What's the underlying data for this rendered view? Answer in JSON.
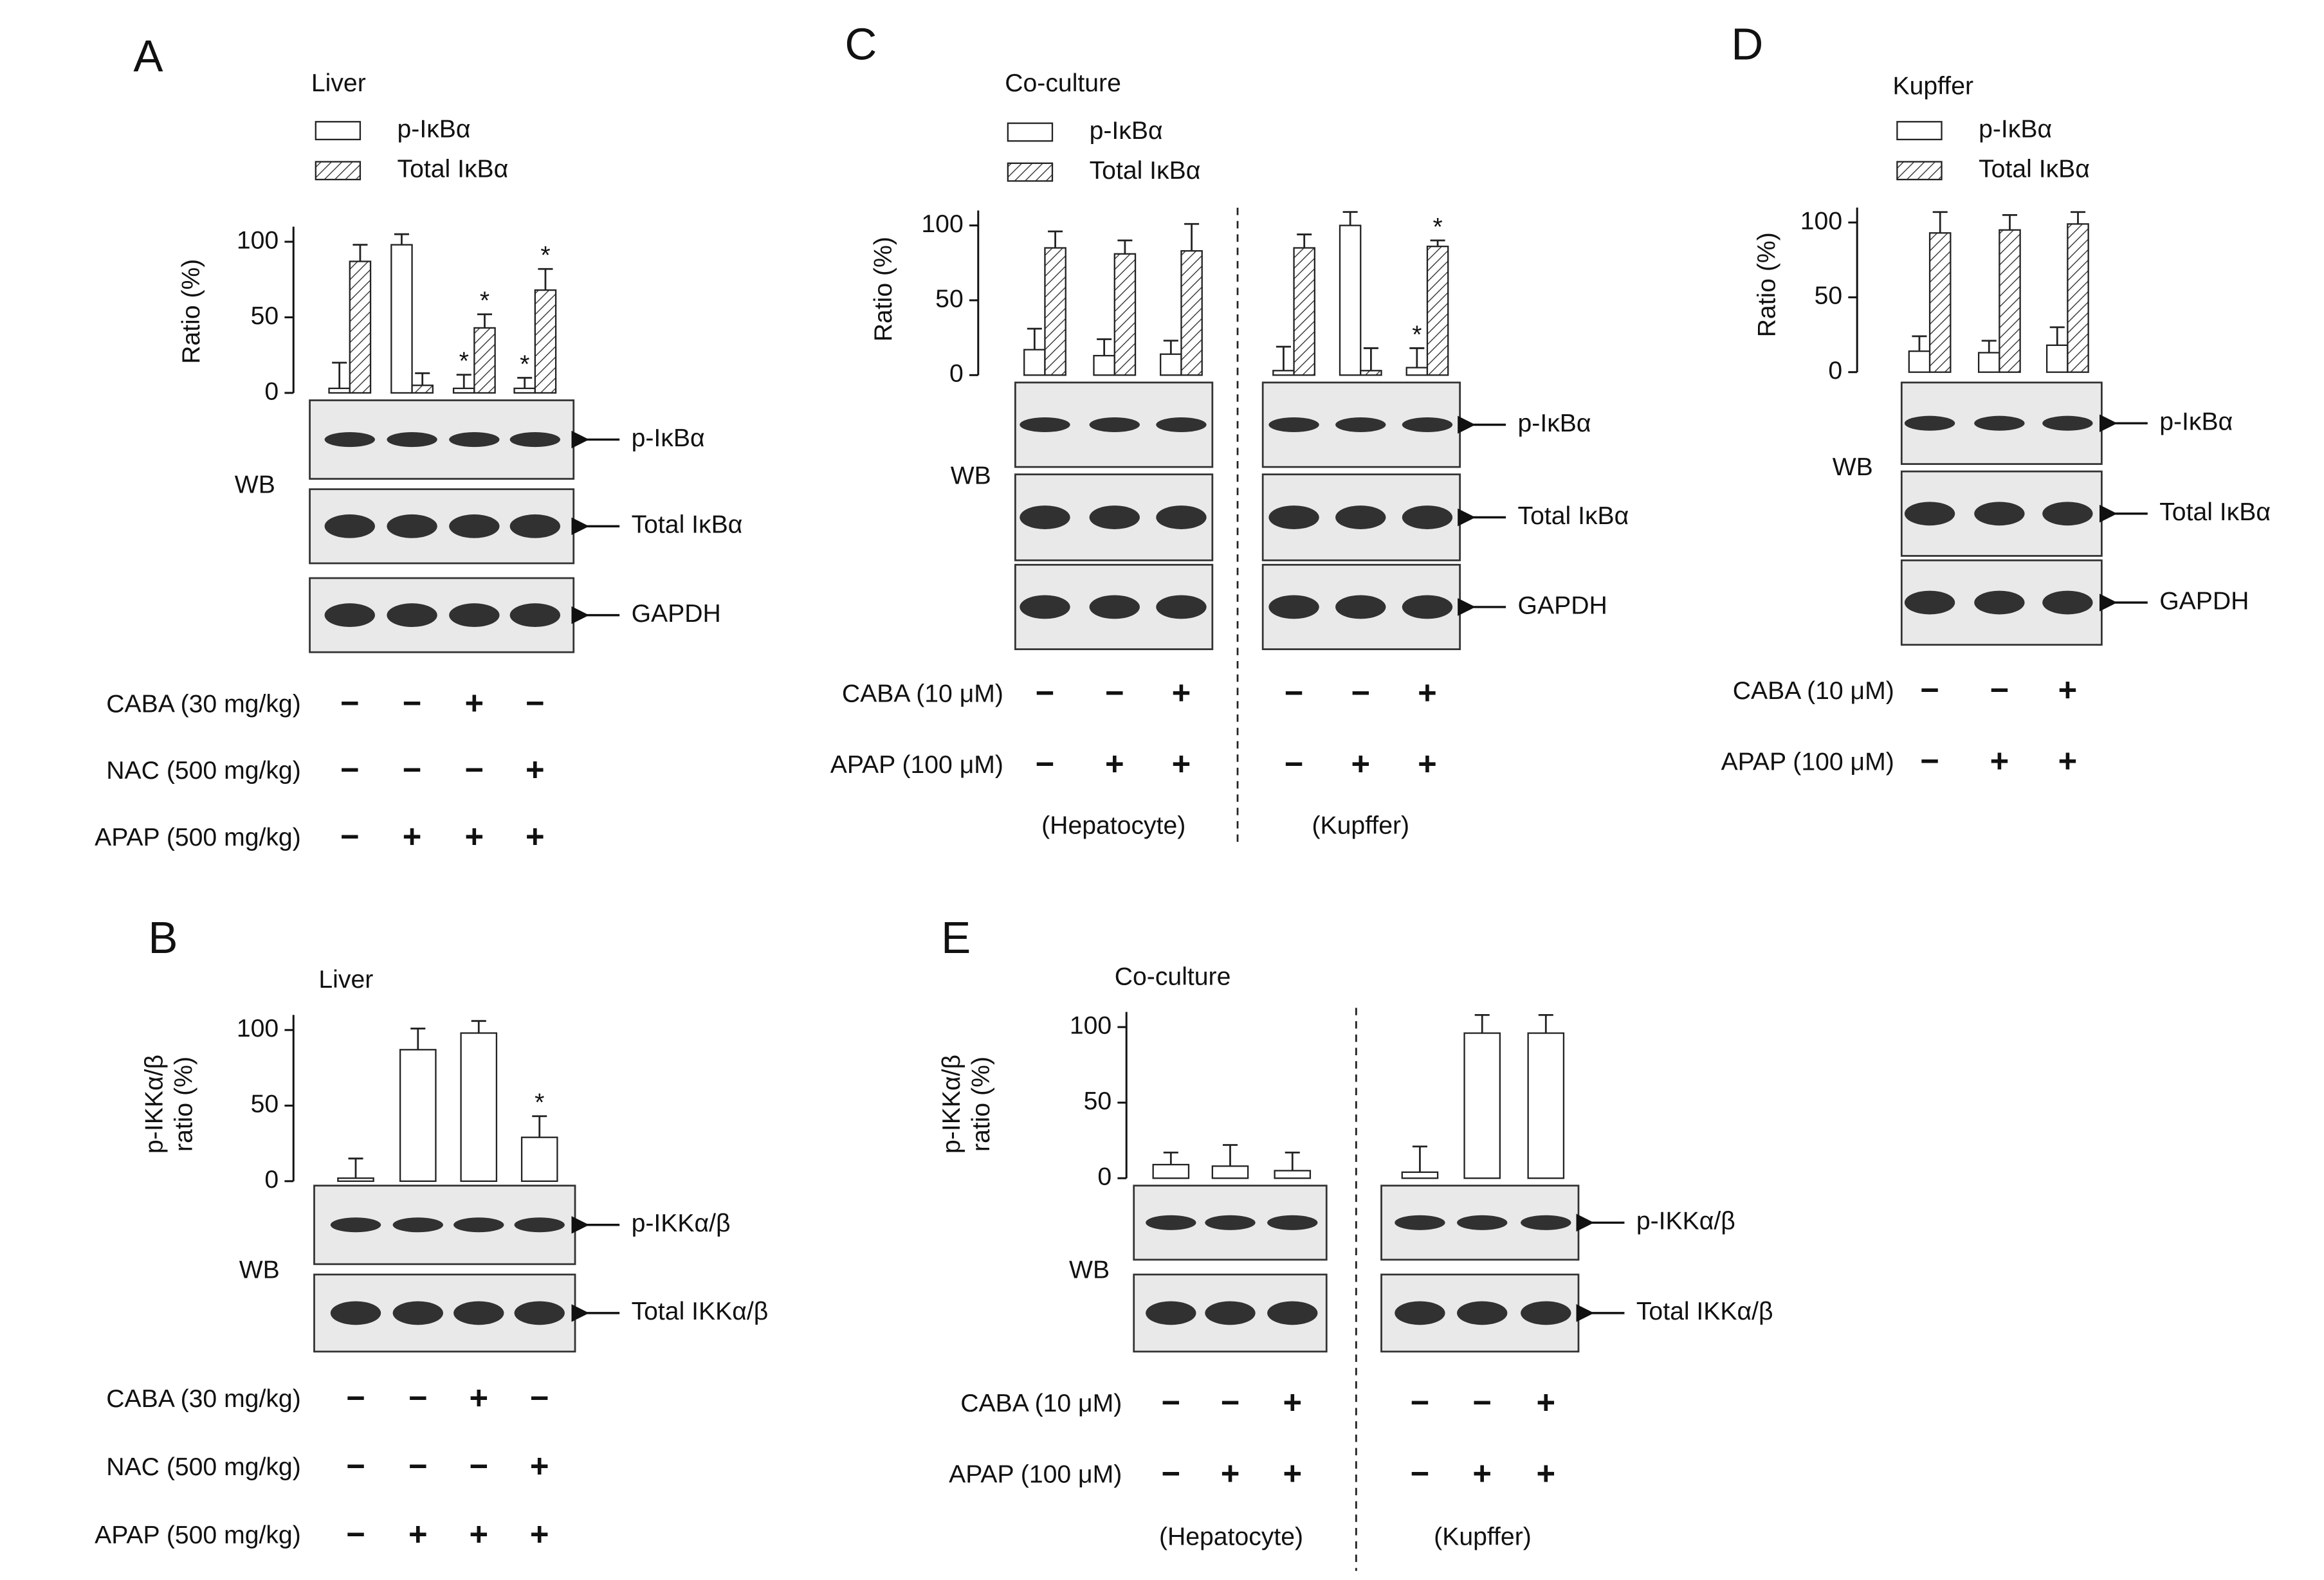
{
  "chart_data": [
    {
      "type": "bar",
      "panel": "A",
      "title": "Liver",
      "ylabel": "Ratio (%)",
      "ylim": [
        0,
        110
      ],
      "yticks": [
        0,
        50,
        100
      ],
      "categories": [
        null,
        null,
        null,
        null
      ],
      "series": [
        {
          "name": "p-IκBα",
          "color": "#ffffff",
          "values": [
            3,
            98,
            3,
            3
          ],
          "errors": [
            17,
            7,
            9,
            7
          ],
          "significance": [
            null,
            null,
            "*",
            "*"
          ]
        },
        {
          "name": "Total IκBα",
          "color": "#ffffff",
          "hatch": true,
          "values": [
            87,
            5,
            43,
            68
          ],
          "errors": [
            11,
            8,
            9,
            14
          ],
          "significance": [
            null,
            null,
            "*",
            "*"
          ]
        }
      ],
      "blot": {
        "label": "WB",
        "rows": [
          "p-IκBα",
          "Total IκBα",
          "GAPDH"
        ]
      },
      "treatments": [
        {
          "label": "CABA (30 mg/kg)",
          "signs": [
            "−",
            "−",
            "+",
            "−"
          ]
        },
        {
          "label": "NAC (500 mg/kg)",
          "signs": [
            "−",
            "−",
            "−",
            "+"
          ]
        },
        {
          "label": "APAP (500 mg/kg)",
          "signs": [
            "−",
            "+",
            "+",
            "+"
          ]
        }
      ]
    },
    {
      "type": "bar",
      "panel": "B",
      "title": "Liver",
      "ylabel": [
        "p-IKKα/β",
        "ratio (%)"
      ],
      "ylim": [
        0,
        110
      ],
      "yticks": [
        0,
        50,
        100
      ],
      "categories": [
        null,
        null,
        null,
        null
      ],
      "series": [
        {
          "color": "#ffffff",
          "values": [
            2,
            87,
            98,
            29
          ],
          "errors": [
            13,
            14,
            8,
            14
          ],
          "significance": [
            null,
            null,
            null,
            "*"
          ]
        }
      ],
      "blot": {
        "label": "WB",
        "rows": [
          "p-IKKα/β",
          "Total IKKα/β"
        ]
      },
      "treatments": [
        {
          "label": "CABA (30 mg/kg)",
          "signs": [
            "−",
            "−",
            "+",
            "−"
          ]
        },
        {
          "label": "NAC (500 mg/kg)",
          "signs": [
            "−",
            "−",
            "−",
            "+"
          ]
        },
        {
          "label": "APAP (500 mg/kg)",
          "signs": [
            "−",
            "+",
            "+",
            "+"
          ]
        }
      ]
    },
    {
      "type": "bar",
      "panel": "C",
      "title": "Co-culture",
      "ylabel": "Ratio (%)",
      "ylim": [
        0,
        110
      ],
      "yticks": [
        0,
        50,
        100
      ],
      "categories": [
        null,
        null,
        null,
        null,
        null,
        null
      ],
      "groups": [
        "(Hepatocyte)",
        "(Kupffer)"
      ],
      "series": [
        {
          "name": "p-IκBα",
          "color": "#ffffff",
          "values": [
            17,
            13,
            14,
            3,
            100,
            5
          ],
          "errors": [
            14,
            11,
            9,
            16,
            9,
            13
          ],
          "significance": [
            null,
            null,
            null,
            null,
            null,
            "*"
          ]
        },
        {
          "name": "Total IκBα",
          "color": "#ffffff",
          "hatch": true,
          "values": [
            85,
            81,
            83,
            85,
            3,
            86
          ],
          "errors": [
            11,
            9,
            18,
            9,
            15,
            4
          ],
          "significance": [
            null,
            null,
            null,
            null,
            null,
            "*"
          ]
        }
      ],
      "blot": {
        "label": "WB",
        "rows": [
          "p-IκBα",
          "Total IκBα",
          "GAPDH"
        ]
      },
      "treatments": [
        {
          "label": "CABA (10 μM)",
          "signs": [
            "−",
            "−",
            "+",
            "−",
            "−",
            "+"
          ]
        },
        {
          "label": "APAP (100 μM)",
          "signs": [
            "−",
            "+",
            "+",
            "−",
            "+",
            "+"
          ]
        }
      ]
    },
    {
      "type": "bar",
      "panel": "D",
      "title": "Kupffer",
      "ylabel": "Ratio (%)",
      "ylim": [
        0,
        110
      ],
      "yticks": [
        0,
        50,
        100
      ],
      "categories": [
        null,
        null,
        null
      ],
      "series": [
        {
          "name": "p-IκBα",
          "color": "#ffffff",
          "values": [
            14,
            13,
            18
          ],
          "errors": [
            10,
            8,
            12
          ]
        },
        {
          "name": "Total IκBα",
          "color": "#ffffff",
          "hatch": true,
          "values": [
            93,
            95,
            99
          ],
          "errors": [
            14,
            10,
            8
          ]
        }
      ],
      "blot": {
        "label": "WB",
        "rows": [
          "p-IκBα",
          "Total IκBα",
          "GAPDH"
        ]
      },
      "treatments": [
        {
          "label": "CABA (10 μM)",
          "signs": [
            "−",
            "−",
            "+"
          ]
        },
        {
          "label": "APAP (100 μM)",
          "signs": [
            "−",
            "+",
            "+"
          ]
        }
      ]
    },
    {
      "type": "bar",
      "panel": "E",
      "title": "Co-culture",
      "ylabel": [
        "p-IKKα/β",
        "ratio (%)"
      ],
      "ylim": [
        0,
        110
      ],
      "yticks": [
        0,
        50,
        100
      ],
      "categories": [
        null,
        null,
        null,
        null,
        null,
        null
      ],
      "groups": [
        "(Hepatocyte)",
        "(Kupffer)"
      ],
      "series": [
        {
          "color": "#ffffff",
          "values": [
            9,
            8,
            5,
            4,
            96,
            96
          ],
          "errors": [
            8,
            14,
            12,
            17,
            12,
            12
          ]
        }
      ],
      "blot": {
        "label": "WB",
        "rows": [
          "p-IKKα/β",
          "Total IKKα/β"
        ]
      },
      "treatments": [
        {
          "label": "CABA (10 μM)",
          "signs": [
            "−",
            "−",
            "+",
            "−",
            "−",
            "+"
          ]
        },
        {
          "label": "APAP (100 μM)",
          "signs": [
            "−",
            "+",
            "+",
            "−",
            "+",
            "+"
          ]
        }
      ]
    }
  ]
}
